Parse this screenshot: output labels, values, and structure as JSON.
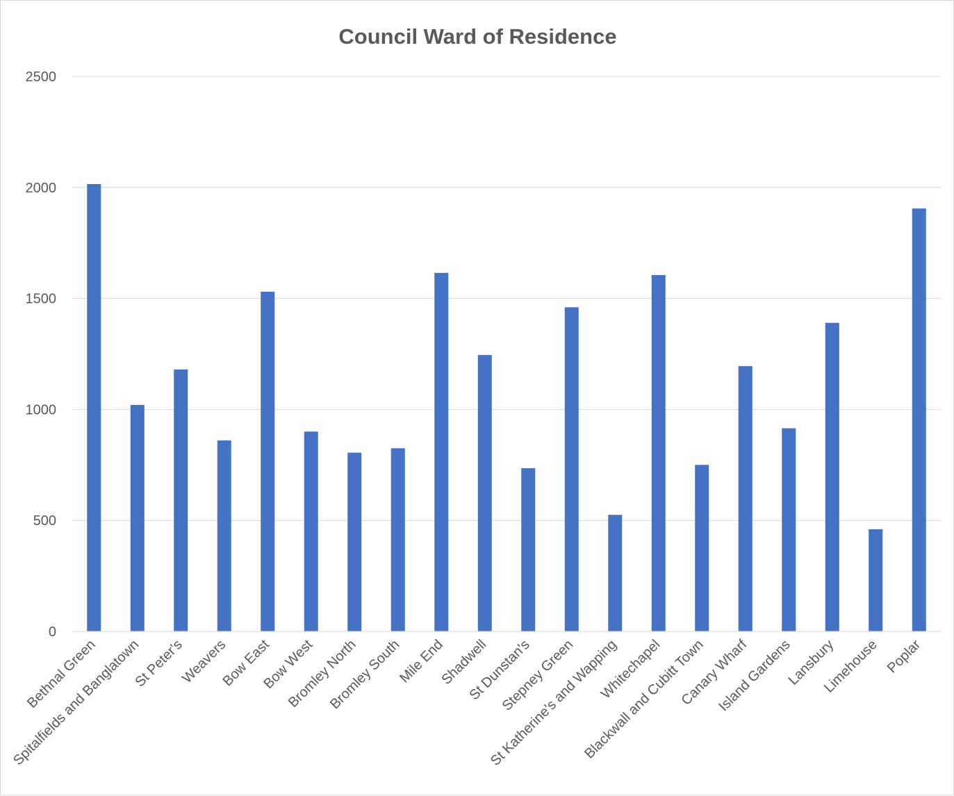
{
  "chart_data": {
    "type": "bar",
    "title": "Council Ward of Residence",
    "xlabel": "",
    "ylabel": "",
    "ylim": [
      0,
      2500
    ],
    "yticks": [
      "0",
      "500",
      "1000",
      "1500",
      "2000",
      "2500"
    ],
    "grid": true,
    "legend": "none",
    "colors": {
      "bar": "#4472c4",
      "grid": "#d9d9d9",
      "text": "#595959",
      "border": "#d9d9d9"
    },
    "categories": [
      "Bethnal Green",
      "Spitalfields and Banglatown",
      "St Peter's",
      "Weavers",
      "Bow East",
      "Bow West",
      "Bromley North",
      "Bromley South",
      "Mile End",
      "Shadwell",
      "St Dunstan's",
      "Stepney Green",
      "St Katherine's and Wapping",
      "Whitechapel",
      "Blackwall and Cubitt Town",
      "Canary Wharf",
      "Island Gardens",
      "Lansbury",
      "Limehouse",
      "Poplar"
    ],
    "values": [
      2015,
      1020,
      1180,
      860,
      1530,
      900,
      805,
      825,
      1615,
      1245,
      735,
      1460,
      525,
      1605,
      750,
      1195,
      915,
      1390,
      460,
      1905
    ]
  }
}
